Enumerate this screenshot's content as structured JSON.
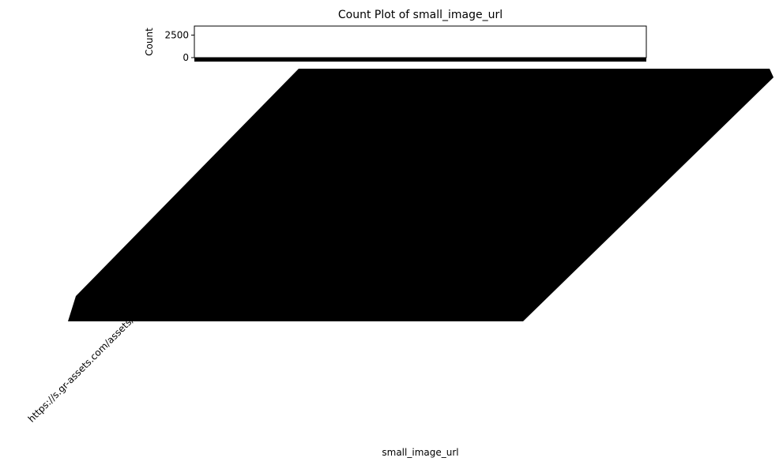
{
  "chart_data": {
    "type": "bar",
    "title": "Count Plot of small_image_url",
    "xlabel": "small_image_url",
    "ylabel": "Count",
    "ylim": [
      0,
      3500
    ],
    "y_ticks": [
      0,
      2500
    ],
    "first_visible_category_label": "https://s.gr-assets.com/assets/",
    "x_tick_label_rotation": "45",
    "grid": false,
    "legend": "none",
    "bar_color": "#1f77b4",
    "axis_color": "#000000",
    "label_block_color": "#000000"
  }
}
